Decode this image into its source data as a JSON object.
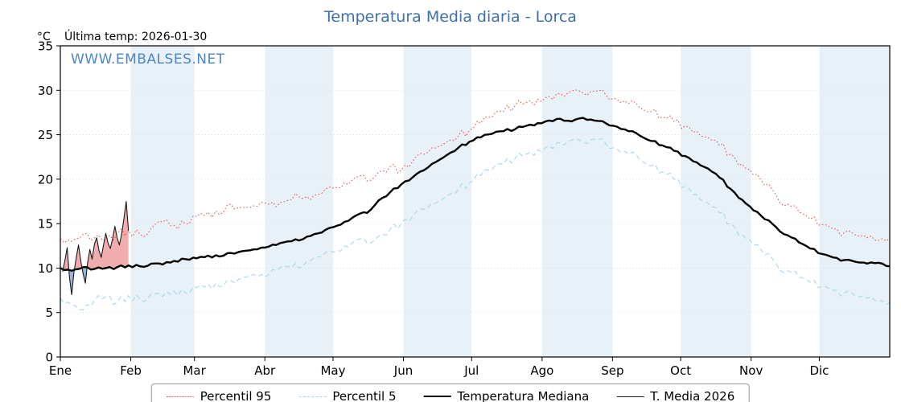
{
  "page": {
    "title": "Temperatura Media diaria - Lorca",
    "watermark": "WWW.EMBALSES.NET",
    "last_temp": "Última temp: 2026-01-30",
    "unit": "°C"
  },
  "colors": {
    "title": "#3d70ab",
    "watermark": "#4c86c6",
    "band": "#e9f1f8",
    "grid": "#d9d9d9",
    "frame": "#000000",
    "fill_above": "rgba(229,106,106,0.55)",
    "fill_below": "rgba(93,133,191,0.60)"
  },
  "chart_data": {
    "type": "line",
    "title": "Temperatura Media diaria - Lorca",
    "xlabel": "",
    "ylabel": "°C",
    "x_unit": "day_of_year",
    "xlim": [
      0,
      365
    ],
    "ylim": [
      0,
      35
    ],
    "y_ticks": [
      0,
      5,
      10,
      15,
      20,
      25,
      30,
      35
    ],
    "grid": "faint horizontal dotted",
    "legend_position": "bottom",
    "months": [
      {
        "label": "Ene",
        "start_day": 0
      },
      {
        "label": "Feb",
        "start_day": 31
      },
      {
        "label": "Mar",
        "start_day": 59
      },
      {
        "label": "Abr",
        "start_day": 90
      },
      {
        "label": "May",
        "start_day": 120
      },
      {
        "label": "Jun",
        "start_day": 151
      },
      {
        "label": "Jul",
        "start_day": 181
      },
      {
        "label": "Ago",
        "start_day": 212
      },
      {
        "label": "Sep",
        "start_day": 243
      },
      {
        "label": "Oct",
        "start_day": 273
      },
      {
        "label": "Nov",
        "start_day": 304
      },
      {
        "label": "Dic",
        "start_day": 334
      }
    ],
    "shaded_month_indices": [
      1,
      3,
      5,
      7,
      9,
      11
    ],
    "series": [
      {
        "name": "Percentil 95",
        "role": "p95",
        "color": "#e14b4b",
        "line_style": "dotted",
        "line_width": 1.0,
        "noise": 0.55,
        "x_start_day": 0,
        "x_step_days": 5,
        "values": [
          13.3,
          13.0,
          13.8,
          13.4,
          13.2,
          13.9,
          14.2,
          13.8,
          14.5,
          15.2,
          14.8,
          15.0,
          15.8,
          16.3,
          16.0,
          17.2,
          16.8,
          17.0,
          17.3,
          16.9,
          17.6,
          18.0,
          17.7,
          18.4,
          19.0,
          19.6,
          20.2,
          19.8,
          20.8,
          21.4,
          21.0,
          22.0,
          22.8,
          23.5,
          24.2,
          24.8,
          25.5,
          26.3,
          27.0,
          27.6,
          28.2,
          28.6,
          29.0,
          29.3,
          29.6,
          29.9,
          29.7,
          29.9,
          29.5,
          29.0,
          28.5,
          28.0,
          27.6,
          27.0,
          26.5,
          26.0,
          25.4,
          24.7,
          23.8,
          22.8,
          21.7,
          20.5,
          19.3,
          18.2,
          17.2,
          16.3,
          15.5,
          14.9,
          14.4,
          14.0,
          13.7,
          13.4,
          13.1,
          13.4
        ]
      },
      {
        "name": "Percentil 5",
        "role": "p5",
        "color": "#a5d7ea",
        "line_style": "dashed",
        "line_width": 1.1,
        "noise": 0.5,
        "x_start_day": 0,
        "x_step_days": 5,
        "values": [
          6.6,
          5.9,
          5.3,
          6.4,
          6.8,
          6.2,
          6.9,
          6.5,
          7.1,
          6.8,
          7.4,
          7.2,
          7.8,
          8.2,
          7.9,
          8.6,
          8.9,
          9.3,
          9.0,
          9.7,
          10.2,
          10.0,
          10.8,
          11.3,
          11.8,
          12.5,
          13.1,
          12.8,
          13.6,
          14.3,
          15.0,
          15.8,
          16.6,
          17.3,
          18.1,
          18.8,
          19.6,
          20.4,
          21.1,
          21.7,
          22.3,
          22.8,
          23.3,
          23.7,
          24.1,
          24.4,
          24.2,
          24.5,
          24.0,
          23.4,
          22.8,
          22.2,
          21.5,
          20.8,
          20.0,
          19.2,
          18.3,
          17.3,
          16.2,
          15.0,
          13.8,
          12.6,
          11.5,
          10.5,
          9.7,
          9.0,
          8.4,
          7.9,
          7.5,
          7.2,
          6.9,
          6.6,
          6.3,
          6.1
        ]
      },
      {
        "name": "Temperatura Mediana",
        "role": "median",
        "color": "#000000",
        "line_style": "solid",
        "line_width": 2.4,
        "noise": 0.18,
        "x_start_day": 0,
        "x_step_days": 5,
        "values": [
          10.0,
          9.7,
          10.1,
          9.9,
          10.0,
          10.1,
          10.3,
          10.2,
          10.5,
          10.4,
          10.8,
          11.0,
          11.1,
          11.4,
          11.3,
          11.7,
          11.9,
          12.1,
          12.3,
          12.6,
          13.0,
          13.1,
          13.6,
          14.0,
          14.6,
          15.2,
          15.9,
          16.2,
          17.6,
          18.5,
          19.4,
          20.2,
          21.0,
          21.9,
          22.7,
          23.5,
          24.2,
          24.7,
          25.1,
          25.4,
          25.6,
          26.0,
          26.3,
          26.6,
          26.8,
          26.5,
          26.9,
          26.6,
          26.3,
          25.9,
          25.4,
          24.9,
          24.3,
          23.8,
          23.2,
          22.6,
          21.9,
          21.2,
          20.2,
          18.9,
          17.7,
          16.5,
          15.5,
          14.6,
          13.7,
          12.9,
          12.2,
          11.6,
          11.2,
          10.9,
          10.7,
          10.5,
          10.6,
          10.2
        ]
      },
      {
        "name": "T. Media 2026",
        "role": "current",
        "color": "#1a1a1a",
        "line_style": "solid",
        "line_width": 1.1,
        "noise": 0,
        "x_start_day": 1,
        "x_step_days": 1,
        "values": [
          9.6,
          10.8,
          12.3,
          9.0,
          7.0,
          9.5,
          11.2,
          12.6,
          10.8,
          9.4,
          8.3,
          10.6,
          12.1,
          11.0,
          12.7,
          13.4,
          12.0,
          11.2,
          12.6,
          13.9,
          12.8,
          12.2,
          13.3,
          14.7,
          13.4,
          12.6,
          13.9,
          15.6,
          17.5,
          14.2
        ]
      }
    ],
    "annotations": {
      "fill_between": "T. Media 2026 vs Temperatura Mediana (January only)",
      "fill_above_meaning": "2026 above median (red)",
      "fill_below_meaning": "2026 below median (blue)"
    }
  },
  "legend": {
    "items": [
      {
        "label": "Percentil 95"
      },
      {
        "label": "Percentil 5"
      },
      {
        "label": "Temperatura Mediana"
      },
      {
        "label": "T. Media 2026"
      }
    ]
  }
}
